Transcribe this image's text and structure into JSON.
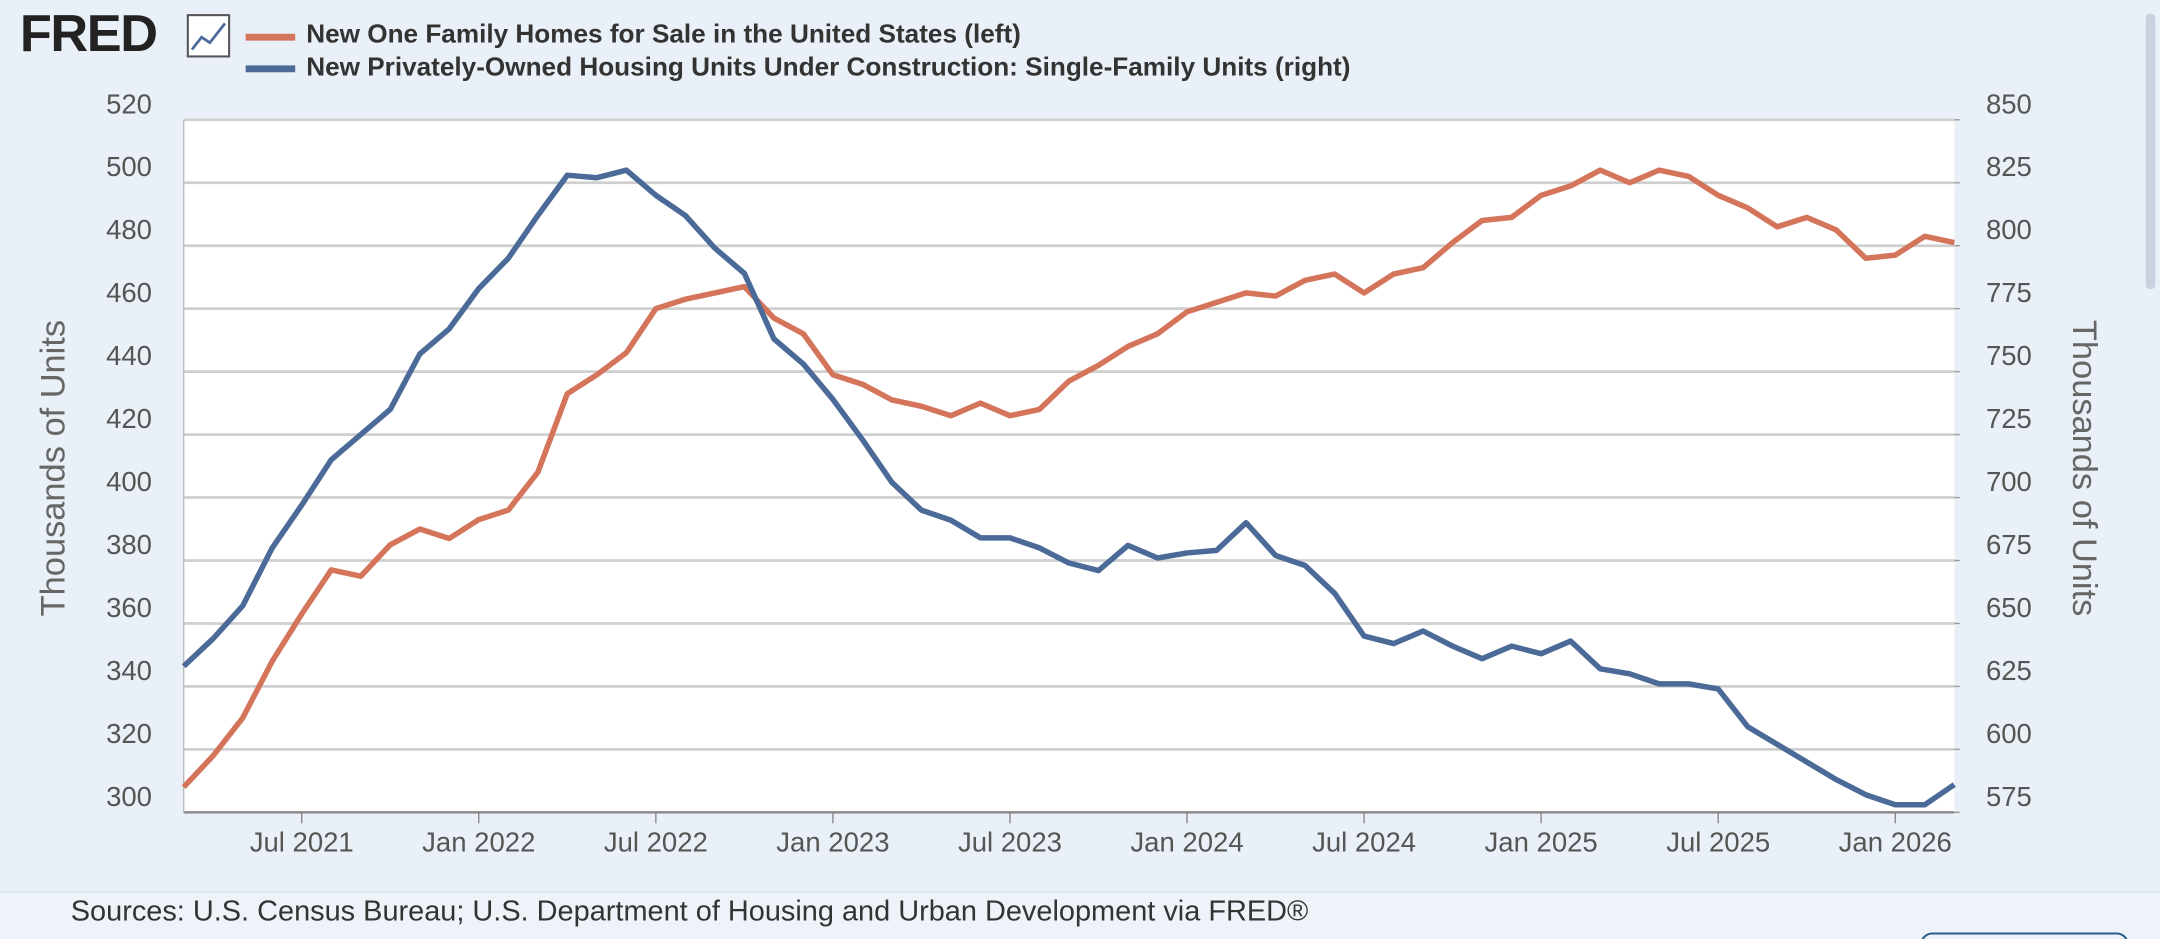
{
  "logo": "FRED",
  "chart_data": {
    "type": "line",
    "y_label": "Thousands of Units",
    "y2_label": "Thousands of Units",
    "source": "Sources: U.S. Census Bureau; U.S. Department of Housing and Urban Development via FRED®",
    "x": [
      "2021-03",
      "2021-04",
      "2021-05",
      "2021-06",
      "2021-07",
      "2021-08",
      "2021-09",
      "2021-10",
      "2021-11",
      "2021-12",
      "2022-01",
      "2022-02",
      "2022-03",
      "2022-04",
      "2022-05",
      "2022-06",
      "2022-07",
      "2022-08",
      "2022-09",
      "2022-10",
      "2022-11",
      "2022-12",
      "2023-01",
      "2023-02",
      "2023-03",
      "2023-04",
      "2023-05",
      "2023-06",
      "2023-07",
      "2023-08",
      "2023-09",
      "2023-10",
      "2023-11",
      "2023-12",
      "2024-01",
      "2024-02",
      "2024-03",
      "2024-04",
      "2024-05",
      "2024-06",
      "2024-07",
      "2024-08",
      "2024-09",
      "2024-10",
      "2024-11",
      "2024-12",
      "2025-01",
      "2025-02",
      "2025-03",
      "2025-04",
      "2025-05",
      "2025-06",
      "2025-07",
      "2025-08",
      "2025-09",
      "2025-10",
      "2025-11",
      "2025-12",
      "2026-01",
      "2026-02",
      "2026-03"
    ],
    "series": [
      {
        "name": "New One Family Homes for Sale in the United States (left)",
        "color": "#d4745a",
        "axis": "y",
        "values": [
          308,
          318,
          330,
          348,
          363,
          377,
          375,
          385,
          390,
          387,
          393,
          396,
          408,
          433,
          439,
          446,
          460,
          463,
          465,
          467,
          457,
          452,
          439,
          436,
          431,
          429,
          426,
          430,
          426,
          428,
          437,
          442,
          448,
          452,
          459,
          462,
          465,
          464,
          469,
          471,
          465,
          471,
          473,
          481,
          488,
          489,
          496,
          499,
          504,
          500,
          504,
          502,
          496,
          492,
          486,
          489,
          485,
          476,
          477,
          483,
          481
        ]
      },
      {
        "name": "New Privately-Owned Housing Units Under Construction: Single-Family Units (right)",
        "color": "#4b6a97",
        "axis": "y2",
        "values": [
          633,
          644,
          657,
          680,
          697,
          715,
          725,
          735,
          757,
          767,
          783,
          795,
          812,
          828,
          827,
          830,
          820,
          812,
          799,
          789,
          763,
          753,
          739,
          723,
          706,
          695,
          691,
          684,
          684,
          680,
          674,
          671,
          681,
          676,
          678,
          679,
          690,
          677,
          673,
          662,
          645,
          642,
          647,
          641,
          636,
          641,
          638,
          643,
          632,
          630,
          626,
          626,
          624,
          609,
          602,
          595,
          588,
          582,
          578,
          578,
          586
        ]
      }
    ],
    "ylim": [
      300,
      520
    ],
    "yticks": [
      300,
      320,
      340,
      360,
      380,
      400,
      420,
      440,
      460,
      480,
      500,
      520
    ],
    "y2lim": [
      575,
      850
    ],
    "y2ticks": [
      575,
      600,
      625,
      650,
      675,
      700,
      725,
      750,
      775,
      800,
      825,
      850
    ],
    "xticks": [
      {
        "value": "2021-07",
        "label": "Jul 2021"
      },
      {
        "value": "2022-01",
        "label": "Jan 2022"
      },
      {
        "value": "2022-07",
        "label": "Jul 2022"
      },
      {
        "value": "2023-01",
        "label": "Jan 2023"
      },
      {
        "value": "2023-07",
        "label": "Jul 2023"
      },
      {
        "value": "2024-01",
        "label": "Jan 2024"
      },
      {
        "value": "2024-07",
        "label": "Jul 2024"
      },
      {
        "value": "2025-01",
        "label": "Jan 2025"
      },
      {
        "value": "2025-07",
        "label": "Jul 2025"
      },
      {
        "value": "2026-01",
        "label": "Jan 2026"
      }
    ],
    "grid": true
  }
}
